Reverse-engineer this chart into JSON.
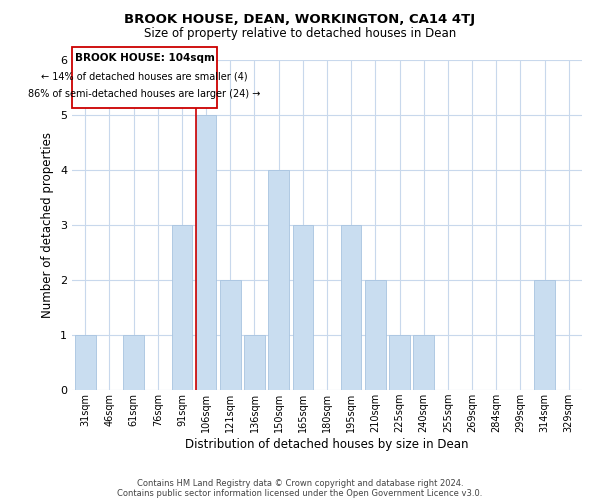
{
  "title": "BROOK HOUSE, DEAN, WORKINGTON, CA14 4TJ",
  "subtitle": "Size of property relative to detached houses in Dean",
  "xlabel": "Distribution of detached houses by size in Dean",
  "ylabel": "Number of detached properties",
  "bar_labels": [
    "31sqm",
    "46sqm",
    "61sqm",
    "76sqm",
    "91sqm",
    "106sqm",
    "121sqm",
    "136sqm",
    "150sqm",
    "165sqm",
    "180sqm",
    "195sqm",
    "210sqm",
    "225sqm",
    "240sqm",
    "255sqm",
    "269sqm",
    "284sqm",
    "299sqm",
    "314sqm",
    "329sqm"
  ],
  "bar_values": [
    1,
    0,
    1,
    0,
    3,
    5,
    2,
    1,
    4,
    3,
    0,
    3,
    2,
    1,
    1,
    0,
    0,
    0,
    0,
    2,
    0
  ],
  "bar_color": "#c9ddf0",
  "bar_edge_color": "#a8c4e0",
  "highlight_bar_index": 5,
  "highlight_line_color": "#cc0000",
  "ylim": [
    0,
    6
  ],
  "yticks": [
    0,
    1,
    2,
    3,
    4,
    5,
    6
  ],
  "annotation_title": "BROOK HOUSE: 104sqm",
  "annotation_line1": "← 14% of detached houses are smaller (4)",
  "annotation_line2": "86% of semi-detached houses are larger (24) →",
  "footer_line1": "Contains HM Land Registry data © Crown copyright and database right 2024.",
  "footer_line2": "Contains public sector information licensed under the Open Government Licence v3.0.",
  "background_color": "#ffffff",
  "grid_color": "#c8d8ec"
}
